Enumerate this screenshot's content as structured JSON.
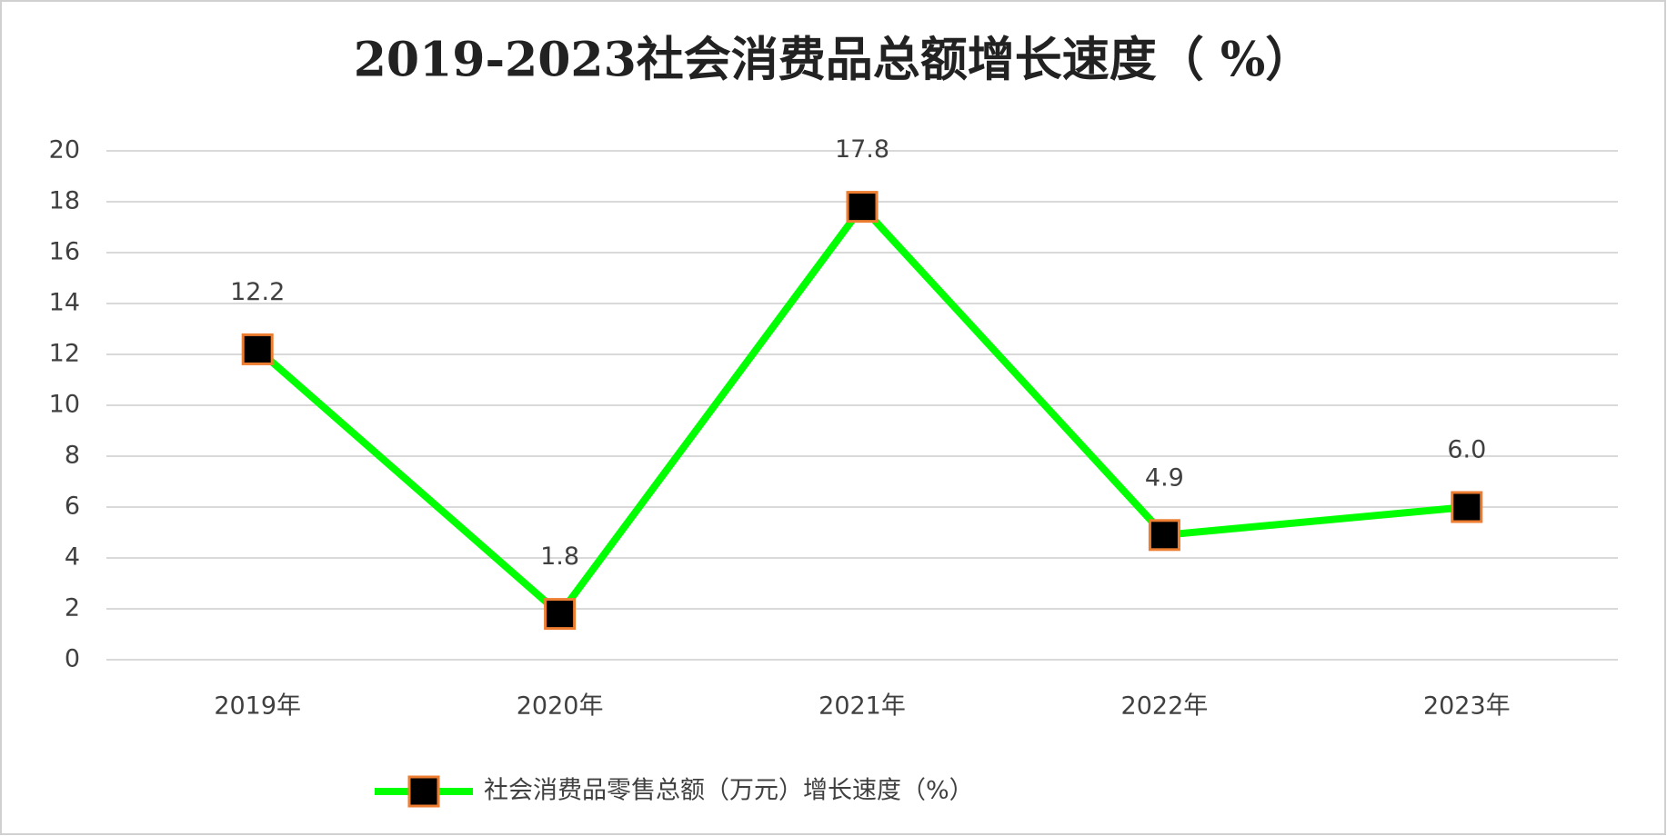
{
  "chart_data": {
    "type": "line",
    "title": "2019-2023社会消费品总额增长速度（ %）",
    "categories": [
      "2019年",
      "2020年",
      "2021年",
      "2022年",
      "2023年"
    ],
    "series": [
      {
        "name": "社会消费品零售总额（万元）增长速度（%）",
        "color": "#00ff00",
        "values": [
          12.2,
          1.8,
          17.8,
          4.9,
          6.0
        ],
        "value_labels": [
          "12.2",
          "1.8",
          "17.8",
          "4.9",
          "6.0"
        ]
      }
    ],
    "ylim": [
      0,
      20
    ],
    "yticks": [
      0,
      2,
      4,
      6,
      8,
      10,
      12,
      14,
      16,
      18,
      20
    ],
    "grid": true,
    "legend": "bottom"
  }
}
